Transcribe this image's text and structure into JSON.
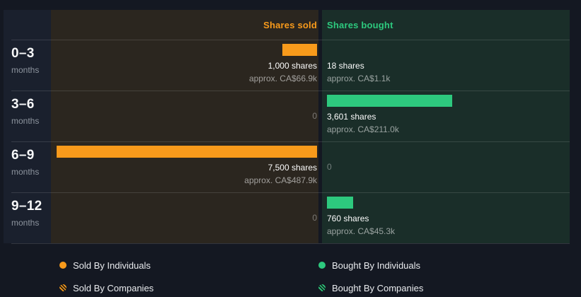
{
  "header": {
    "sold_label": "Shares sold",
    "bought_label": "Shares bought"
  },
  "colors": {
    "sold_accent": "#f89a1b",
    "bought_accent": "#2dc97e",
    "page_bg": "#141822",
    "sold_panel_bg": "#2b261f",
    "bought_panel_bg": "#1a2e29"
  },
  "chart_data": {
    "type": "bar",
    "orientation": "horizontal",
    "categories": [
      "0–3 months",
      "3–6 months",
      "6–9 months",
      "9–12 months"
    ],
    "max_value": 7500,
    "legend_position": "bottom",
    "series": [
      {
        "key": "sold",
        "name": "Shares sold",
        "color": "#f89a1b",
        "values": [
          1000,
          0,
          7500,
          0
        ],
        "approx_values": [
          "CA$66.9k",
          null,
          "CA$487.9k",
          null
        ]
      },
      {
        "key": "bought",
        "name": "Shares bought",
        "color": "#2dc97e",
        "values": [
          18,
          3601,
          0,
          760
        ],
        "approx_values": [
          "CA$1.1k",
          "CA$211.0k",
          null,
          "CA$45.3k"
        ]
      }
    ]
  },
  "rows": [
    {
      "range": "0–3",
      "unit": "months",
      "sold_shares": "1,000 shares",
      "sold_approx": "approx. CA$66.9k",
      "bought_shares": "18 shares",
      "bought_approx": "approx. CA$1.1k"
    },
    {
      "range": "3–6",
      "unit": "months",
      "sold_zero": "0",
      "bought_shares": "3,601 shares",
      "bought_approx": "approx. CA$211.0k"
    },
    {
      "range": "6–9",
      "unit": "months",
      "sold_shares": "7,500 shares",
      "sold_approx": "approx. CA$487.9k",
      "bought_zero": "0"
    },
    {
      "range": "9–12",
      "unit": "months",
      "sold_zero": "0",
      "bought_shares": "760 shares",
      "bought_approx": "approx. CA$45.3k"
    }
  ],
  "legend": [
    {
      "label": "Sold By Individuals",
      "swatch": "solid-orange"
    },
    {
      "label": "Sold By Companies",
      "swatch": "hatched-orange"
    },
    {
      "label": "Bought By Individuals",
      "swatch": "solid-green"
    },
    {
      "label": "Bought By Companies",
      "swatch": "hatched-green"
    }
  ]
}
